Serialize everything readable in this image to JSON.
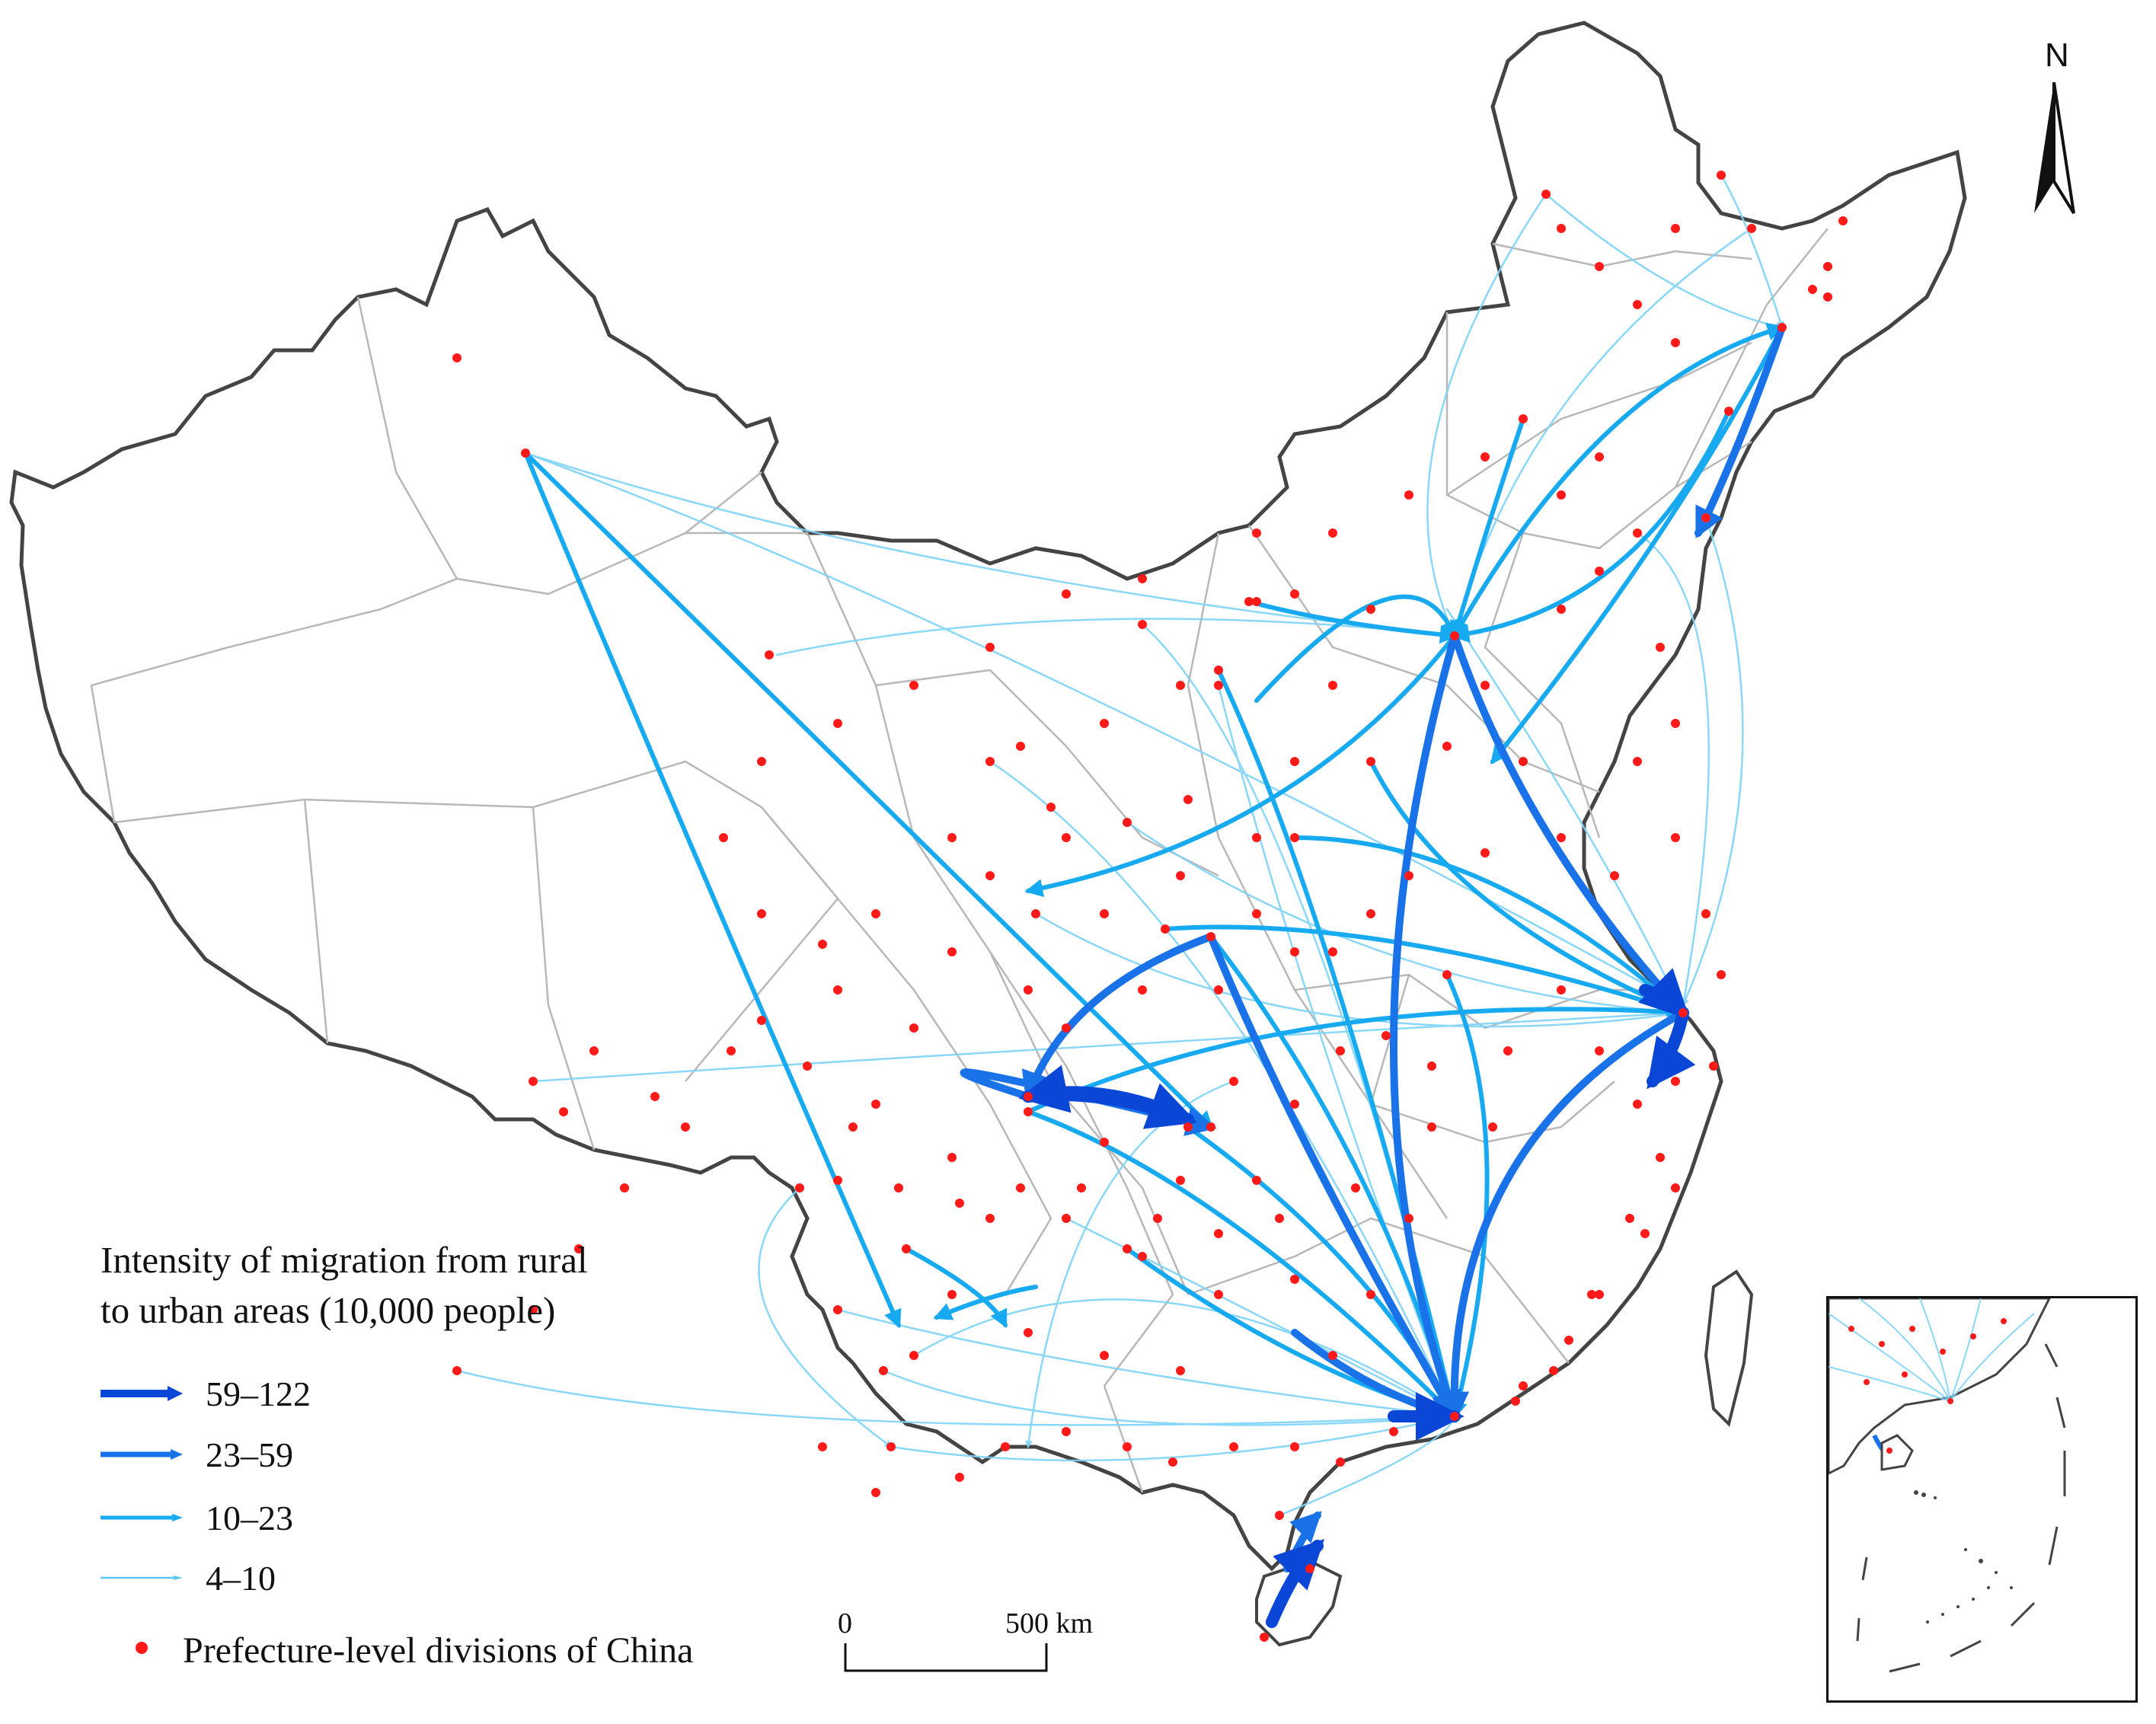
{
  "legend": {
    "title_line1": "Intensity of migration from rural",
    "title_line2": "to urban areas (10,000 people)",
    "classes": [
      {
        "label": "59–122",
        "color": "#0a47d6"
      },
      {
        "label": "23–59",
        "color": "#1a72e8"
      },
      {
        "label": "10–23",
        "color": "#18aaf0"
      },
      {
        "label": "4–10",
        "color": "#5cc6f5"
      }
    ],
    "dots_label": "Prefecture-level divisions of China",
    "dot_color": "#ff1a1a"
  },
  "north_arrow": {
    "label": "N"
  },
  "scale_bar": {
    "start": "0",
    "end": "500 km"
  },
  "colors": {
    "border": "#444444",
    "province": "#b8b8b8",
    "flow_thin": "#7fd3f7"
  }
}
